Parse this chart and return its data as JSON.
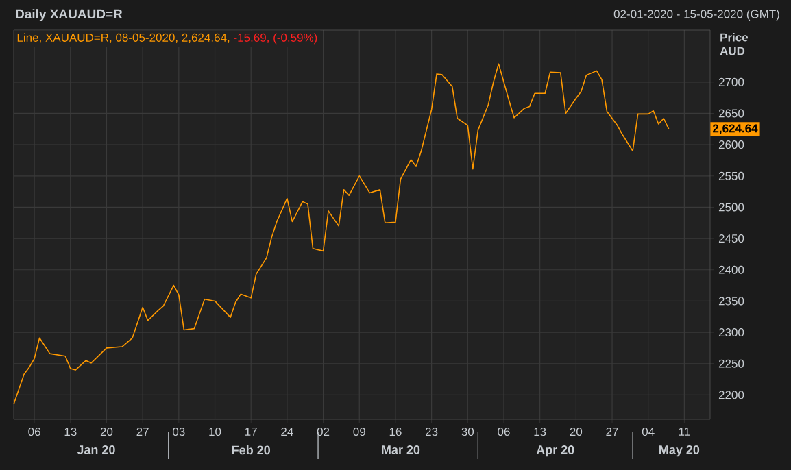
{
  "chart_data": {
    "type": "line",
    "title": "Daily XAUAUD=R",
    "subtitle": "02-01-2020 - 15-05-2020 (GMT)",
    "ylabel": "Price AUD",
    "annotations": [
      "Line, XAUAUD=R, 08-05-2020, 2,624.64,",
      "-15.69, (-0.59%)",
      "2,624.64"
    ],
    "x": [
      "2020-01-02",
      "2020-01-04",
      "2020-01-05",
      "2020-01-06",
      "2020-01-07",
      "2020-01-09",
      "2020-01-12",
      "2020-01-13",
      "2020-01-14",
      "2020-01-16",
      "2020-01-17",
      "2020-01-20",
      "2020-01-23",
      "2020-01-25",
      "2020-01-27",
      "2020-01-28",
      "2020-01-30",
      "2020-01-31",
      "2020-02-02",
      "2020-02-03",
      "2020-02-04",
      "2020-02-06",
      "2020-02-08",
      "2020-02-10",
      "2020-02-13",
      "2020-02-14",
      "2020-02-15",
      "2020-02-17",
      "2020-02-18",
      "2020-02-20",
      "2020-02-21",
      "2020-02-22",
      "2020-02-24",
      "2020-02-25",
      "2020-02-27",
      "2020-02-28",
      "2020-02-29",
      "2020-03-02",
      "2020-03-03",
      "2020-03-05",
      "2020-03-06",
      "2020-03-07",
      "2020-03-09",
      "2020-03-11",
      "2020-03-13",
      "2020-03-14",
      "2020-03-16",
      "2020-03-17",
      "2020-03-19",
      "2020-03-20",
      "2020-03-21",
      "2020-03-23",
      "2020-03-24",
      "2020-03-25",
      "2020-03-27",
      "2020-03-28",
      "2020-03-30",
      "2020-03-31",
      "2020-04-01",
      "2020-04-03",
      "2020-04-04",
      "2020-04-05",
      "2020-04-07",
      "2020-04-08",
      "2020-04-10",
      "2020-04-11",
      "2020-04-12",
      "2020-04-14",
      "2020-04-15",
      "2020-04-17",
      "2020-04-18",
      "2020-04-20",
      "2020-04-21",
      "2020-04-22",
      "2020-04-24",
      "2020-04-25",
      "2020-04-26",
      "2020-04-28",
      "2020-04-29",
      "2020-05-01",
      "2020-05-02",
      "2020-05-04",
      "2020-05-05",
      "2020-05-06",
      "2020-05-07",
      "2020-05-08"
    ],
    "series": [
      {
        "color": "#ff9900",
        "values": [
          2185,
          2233,
          2244,
          2258,
          2291,
          2266,
          2262,
          2242,
          2240,
          2255,
          2251,
          2275,
          2277,
          2291,
          2340,
          2319,
          2335,
          2342,
          2375,
          2360,
          2304,
          2306,
          2353,
          2350,
          2324,
          2348,
          2361,
          2355,
          2393,
          2419,
          2452,
          2477,
          2514,
          2477,
          2509,
          2505,
          2434,
          2430,
          2494,
          2470,
          2528,
          2519,
          2550,
          2523,
          2528,
          2475,
          2476,
          2545,
          2576,
          2565,
          2590,
          2656,
          2713,
          2712,
          2693,
          2642,
          2631,
          2561,
          2623,
          2664,
          2700,
          2729,
          2671,
          2643,
          2658,
          2661,
          2682,
          2682,
          2716,
          2715,
          2650,
          2674,
          2685,
          2711,
          2718,
          2704,
          2653,
          2631,
          2616,
          2590,
          2649,
          2649,
          2654,
          2633,
          2642,
          2624.64
        ]
      }
    ],
    "xlim": [
      "2020-01-02",
      "2020-05-16"
    ],
    "xticks": [
      {
        "value": "2020-01-06",
        "label": "06"
      },
      {
        "value": "2020-01-13",
        "label": "13"
      },
      {
        "value": "2020-01-20",
        "label": "20"
      },
      {
        "value": "2020-01-27",
        "label": "27"
      },
      {
        "value": "2020-02-03",
        "label": "03"
      },
      {
        "value": "2020-02-10",
        "label": "10"
      },
      {
        "value": "2020-02-17",
        "label": "17"
      },
      {
        "value": "2020-02-24",
        "label": "24"
      },
      {
        "value": "2020-03-02",
        "label": "02"
      },
      {
        "value": "2020-03-09",
        "label": "09"
      },
      {
        "value": "2020-03-16",
        "label": "16"
      },
      {
        "value": "2020-03-23",
        "label": "23"
      },
      {
        "value": "2020-03-30",
        "label": "30"
      },
      {
        "value": "2020-04-06",
        "label": "06"
      },
      {
        "value": "2020-04-13",
        "label": "13"
      },
      {
        "value": "2020-04-20",
        "label": "20"
      },
      {
        "value": "2020-04-27",
        "label": "27"
      },
      {
        "value": "2020-05-04",
        "label": "04"
      },
      {
        "value": "2020-05-11",
        "label": "11"
      }
    ],
    "x2lim": [
      "2020-01-02",
      "2020-05-16"
    ],
    "x2ticks": [
      {
        "value": "2020-01-18",
        "label": "Jan 20"
      },
      {
        "value": "2020-02-17",
        "label": "Feb 20"
      },
      {
        "value": "2020-03-17",
        "label": "Mar 20"
      },
      {
        "value": "2020-04-16",
        "label": "Apr 20"
      },
      {
        "value": "2020-05-10",
        "label": "May 20"
      }
    ],
    "ylim": [
      2161,
      2783
    ],
    "yticks": [
      2200,
      2250,
      2300,
      2350,
      2400,
      2450,
      2500,
      2550,
      2600,
      2650,
      2700
    ],
    "grid": true
  }
}
